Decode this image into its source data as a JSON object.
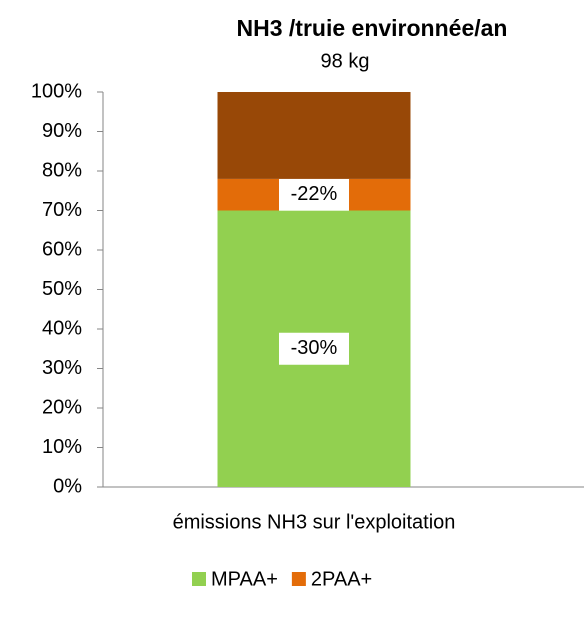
{
  "chart_data": {
    "type": "stacked_bar",
    "title": "NH3 /truie environnée/an",
    "subtitle": "98 kg",
    "categories": [
      "émissions NH3 sur l'exploitation"
    ],
    "series": [
      {
        "name": "MPAA+",
        "color": "#92d050",
        "values": [
          70
        ],
        "annotation": "-30%"
      },
      {
        "name": "2PAA+",
        "color": "#e36c09",
        "values": [
          8
        ],
        "annotation": "-22%"
      },
      {
        "color": "#984807",
        "values": [
          22
        ]
      }
    ],
    "ylim": [
      0,
      100
    ],
    "yticks": [
      {
        "value": 0,
        "label": "0%"
      },
      {
        "value": 10,
        "label": "10%"
      },
      {
        "value": 20,
        "label": "20%"
      },
      {
        "value": 30,
        "label": "30%"
      },
      {
        "value": 40,
        "label": "40%"
      },
      {
        "value": 50,
        "label": "50%"
      },
      {
        "value": 60,
        "label": "60%"
      },
      {
        "value": 70,
        "label": "70%"
      },
      {
        "value": 80,
        "label": "80%"
      },
      {
        "value": 90,
        "label": "90%"
      },
      {
        "value": 100,
        "label": "100%"
      }
    ],
    "legend": "bottom"
  }
}
